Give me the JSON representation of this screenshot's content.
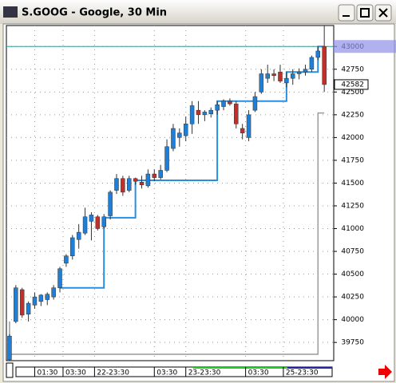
{
  "chart_data": {
    "type": "candlestick",
    "title": "S.GOOG - Google, 30 Min",
    "open": [
      39560,
      39980,
      40330,
      40060,
      40160,
      40200,
      40220,
      40250,
      40350,
      40620,
      40700,
      40880,
      40950,
      41080,
      41130,
      41020,
      41140,
      41420,
      41550,
      41420,
      41550,
      41510,
      41470,
      41600,
      41560,
      41640,
      41880,
      42000,
      42020,
      42150,
      42300,
      42250,
      42260,
      42300,
      42340,
      42400,
      42370,
      42100,
      42000,
      42300,
      42500,
      42650,
      42700,
      42720,
      42600,
      42650,
      42700,
      42720,
      42750,
      42880,
      43000
    ],
    "high": [
      39840,
      40380,
      40350,
      40200,
      40300,
      40280,
      40300,
      40380,
      40580,
      40720,
      40930,
      41050,
      41230,
      41180,
      41150,
      41160,
      41420,
      41600,
      41580,
      41580,
      41560,
      41580,
      41650,
      41650,
      41700,
      41980,
      42150,
      42100,
      42230,
      42400,
      42400,
      42300,
      42330,
      42400,
      42420,
      42430,
      42400,
      42150,
      42300,
      42500,
      42750,
      42800,
      42750,
      42800,
      42720,
      42750,
      42760,
      42800,
      42900,
      43000,
      43230
    ],
    "low": [
      39550,
      39960,
      40020,
      39980,
      40120,
      40150,
      40160,
      40220,
      40300,
      40580,
      40660,
      40780,
      40930,
      40870,
      40980,
      41000,
      41100,
      41380,
      41360,
      41400,
      41480,
      41440,
      41450,
      41520,
      41540,
      41620,
      41850,
      41900,
      41960,
      42040,
      42150,
      42180,
      42220,
      42250,
      42300,
      42350,
      42100,
      41980,
      41960,
      42280,
      42480,
      42600,
      42620,
      42600,
      42550,
      42580,
      42640,
      42680,
      42720,
      42850,
      42500
    ],
    "close": [
      39820,
      40350,
      40050,
      40180,
      40250,
      40270,
      40280,
      40350,
      40560,
      40700,
      40900,
      40960,
      41130,
      41150,
      41000,
      41130,
      41400,
      41550,
      41400,
      41550,
      41520,
      41480,
      41600,
      41560,
      41640,
      41900,
      42100,
      42050,
      42150,
      42350,
      42250,
      42280,
      42300,
      42360,
      42400,
      42370,
      42150,
      42050,
      42250,
      42450,
      42700,
      42700,
      42680,
      42620,
      42650,
      42700,
      42720,
      42750,
      42880,
      42950,
      42582
    ],
    "series": [
      {
        "color": "#2a8ee0",
        "values": [
          null,
          null,
          null,
          null,
          null,
          null,
          null,
          null,
          40350,
          40350,
          40350,
          40350,
          40350,
          40350,
          40350,
          40350,
          41120,
          41120,
          41120,
          41120,
          41120,
          41530,
          41530,
          41530,
          41530,
          41530,
          41530,
          41530,
          41530,
          41530,
          41530,
          41530,
          41530,
          41530,
          42400,
          42400,
          42400,
          42400,
          42400,
          42400,
          42400,
          42400,
          42400,
          42400,
          42400,
          42720,
          42720,
          42720,
          42720,
          42720,
          43000
        ]
      },
      {
        "color": "#9a9a9a",
        "values": [
          39980,
          39620,
          39620,
          39620,
          39620,
          39620,
          39620,
          39620,
          39620,
          39620,
          39620,
          39620,
          39620,
          39620,
          39620,
          39620,
          39620,
          39620,
          39620,
          39620,
          39620,
          39620,
          39620,
          39620,
          39620,
          39620,
          39620,
          39620,
          39620,
          39620,
          39620,
          39620,
          39620,
          39620,
          39620,
          39620,
          39620,
          39620,
          39620,
          39620,
          39620,
          39620,
          39620,
          39620,
          39620,
          39620,
          39620,
          39620,
          39620,
          39620,
          42270
        ]
      }
    ],
    "up_color": "#1f7fd6",
    "down_color": "#c0302b",
    "ylim": [
      39550,
      43230
    ],
    "yticks": [
      39750,
      40000,
      40250,
      40500,
      40750,
      41000,
      41250,
      41500,
      41750,
      42000,
      42250,
      42500,
      42750,
      43000
    ],
    "xlim": [
      -0.5,
      51.5
    ],
    "xticks": [
      {
        "value": 4,
        "label": "01:30"
      },
      {
        "value": 8.5,
        "label": "03:30"
      },
      {
        "value": 13.5,
        "label": "22-23:30"
      },
      {
        "value": 23,
        "label": "03:30"
      },
      {
        "value": 28,
        "label": "23-23:30"
      },
      {
        "value": 37.5,
        "label": "03:30"
      },
      {
        "value": 43.5,
        "label": "25-23:30"
      }
    ],
    "ref_line": 43000,
    "last_price": 42582,
    "grid": true
  }
}
